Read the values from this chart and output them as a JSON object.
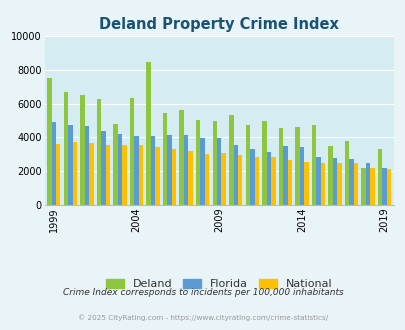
{
  "title": "Deland Property Crime Index",
  "title_color": "#1a5276",
  "years": [
    1999,
    2000,
    2001,
    2002,
    2003,
    2004,
    2005,
    2006,
    2007,
    2008,
    2009,
    2010,
    2011,
    2012,
    2013,
    2014,
    2015,
    2016,
    2017,
    2018,
    2019
  ],
  "deland": [
    7550,
    6700,
    6500,
    6250,
    4800,
    6350,
    8450,
    5450,
    5600,
    5000,
    4950,
    5300,
    4750,
    4950,
    4550,
    4600,
    4700,
    3500,
    3800,
    2200,
    3280
  ],
  "florida": [
    4900,
    4750,
    4650,
    4350,
    4200,
    4050,
    4050,
    4150,
    4150,
    3950,
    3950,
    3550,
    3300,
    3100,
    3500,
    3450,
    2850,
    2750,
    2700,
    2500,
    2200
  ],
  "national": [
    3600,
    3700,
    3650,
    3550,
    3550,
    3550,
    3400,
    3300,
    3200,
    3000,
    3050,
    2950,
    2850,
    2850,
    2650,
    2550,
    2500,
    2450,
    2450,
    2200,
    2100
  ],
  "deland_color": "#8dc63f",
  "florida_color": "#5b9bd5",
  "national_color": "#ffc000",
  "bg_color": "#e8f4f8",
  "plot_bg": "#d6ecf3",
  "ylim": [
    0,
    10000
  ],
  "yticks": [
    0,
    2000,
    4000,
    6000,
    8000,
    10000
  ],
  "xtick_years": [
    1999,
    2004,
    2009,
    2014,
    2019
  ],
  "legend_labels": [
    "Deland",
    "Florida",
    "National"
  ],
  "footnote": "Crime Index corresponds to incidents per 100,000 inhabitants",
  "copyright": "© 2025 CityRating.com - https://www.cityrating.com/crime-statistics/",
  "footnote_color": "#333333",
  "copyright_color": "#999999"
}
